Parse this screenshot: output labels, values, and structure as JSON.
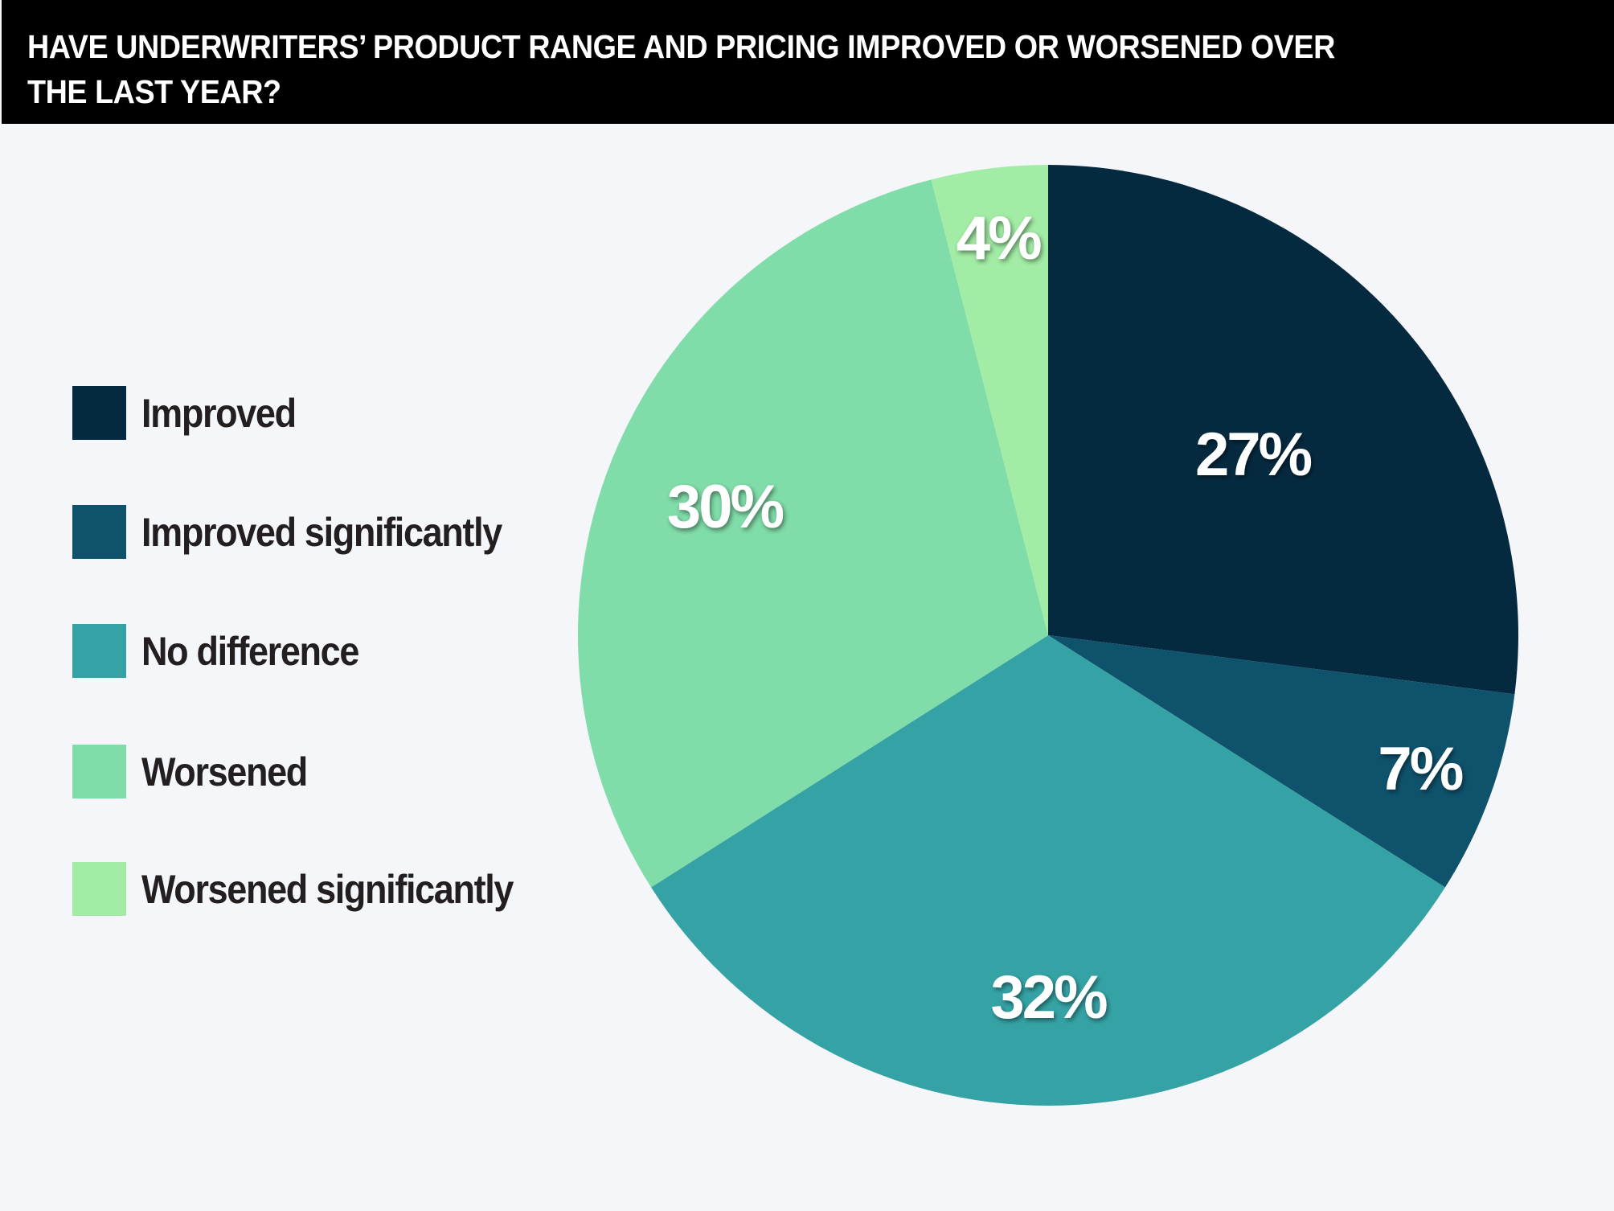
{
  "title": "HAVE UNDERWRITERS’ PRODUCT RANGE AND PRICING IMPROVED OR WORSENED OVER THE LAST YEAR?",
  "chart_data": {
    "type": "pie",
    "title": "HAVE UNDERWRITERS’ PRODUCT RANGE AND PRICING IMPROVED OR WORSENED OVER THE LAST YEAR?",
    "legend_position": "left",
    "slices": [
      {
        "name": "Improved",
        "value": 27,
        "label": "27%",
        "color": "#052a40"
      },
      {
        "name": "Improved significantly",
        "value": 7,
        "label": "7%",
        "color": "#0f526c"
      },
      {
        "name": "No difference",
        "value": 32,
        "label": "32%",
        "color": "#35a3a5"
      },
      {
        "name": "Worsened",
        "value": 30,
        "label": "30%",
        "color": "#80dca8"
      },
      {
        "name": "Worsened significantly",
        "value": 4,
        "label": "4%",
        "color": "#a2eca5"
      }
    ]
  },
  "legend": {
    "items": [
      {
        "label": "Improved",
        "color": "#052a40"
      },
      {
        "label": "Improved significantly",
        "color": "#0f526c"
      },
      {
        "label": "No difference",
        "color": "#35a3a5"
      },
      {
        "label": "Worsened",
        "color": "#80dca8"
      },
      {
        "label": "Worsened significantly",
        "color": "#a2eca5"
      }
    ]
  }
}
